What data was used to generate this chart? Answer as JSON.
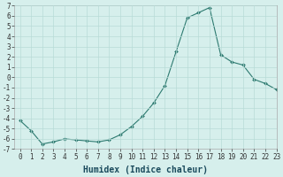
{
  "x": [
    0,
    1,
    2,
    3,
    4,
    5,
    6,
    7,
    8,
    9,
    10,
    11,
    12,
    13,
    14,
    15,
    16,
    17,
    18,
    19,
    20,
    21,
    22,
    23
  ],
  "y": [
    -4.2,
    -5.2,
    -6.5,
    -6.3,
    -6.0,
    -6.1,
    -6.2,
    -6.3,
    -6.1,
    -5.6,
    -4.8,
    -3.8,
    -2.5,
    -0.8,
    2.5,
    5.8,
    6.3,
    6.8,
    2.2,
    1.5,
    1.2,
    -0.2,
    -0.6,
    -1.2
  ],
  "xlabel": "Humidex (Indice chaleur)",
  "ylim": [
    -7,
    7
  ],
  "xlim": [
    -0.5,
    23
  ],
  "xticks": [
    0,
    1,
    2,
    3,
    4,
    5,
    6,
    7,
    8,
    9,
    10,
    11,
    12,
    13,
    14,
    15,
    16,
    17,
    18,
    19,
    20,
    21,
    22,
    23
  ],
  "yticks": [
    -7,
    -6,
    -5,
    -4,
    -3,
    -2,
    -1,
    0,
    1,
    2,
    3,
    4,
    5,
    6,
    7
  ],
  "line_color": "#2d7a70",
  "marker_color": "#2d7a70",
  "bg_color": "#d6efec",
  "grid_color": "#b8dbd7",
  "xlabel_fontsize": 7,
  "tick_fontsize": 5.5
}
